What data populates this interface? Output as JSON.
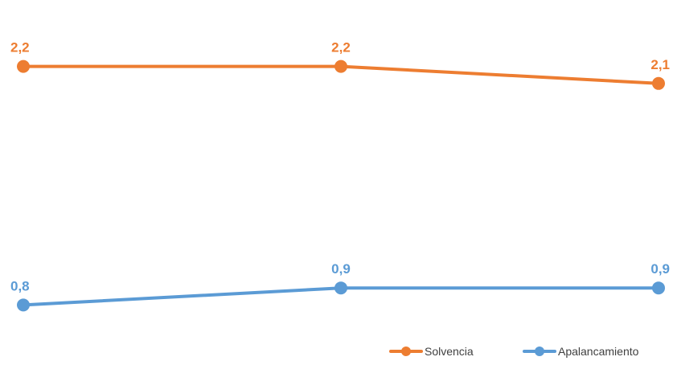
{
  "chart_data": {
    "type": "line",
    "title": "",
    "xlabel": "",
    "ylabel": "",
    "categories": [
      "",
      "",
      ""
    ],
    "ylim": [
      0,
      2.5
    ],
    "grid": false,
    "legend_position": "bottom-right",
    "series": [
      {
        "name": "Solvencia",
        "color": "#ED7D31",
        "values": [
          2.2,
          2.2,
          2.1
        ],
        "labels": [
          "2,2",
          "2,2",
          "2,1"
        ]
      },
      {
        "name": "Apalancamiento",
        "color": "#5B9BD5",
        "values": [
          0.8,
          0.9,
          0.9
        ],
        "labels": [
          "0,8",
          "0,9",
          "0,9"
        ]
      }
    ]
  }
}
